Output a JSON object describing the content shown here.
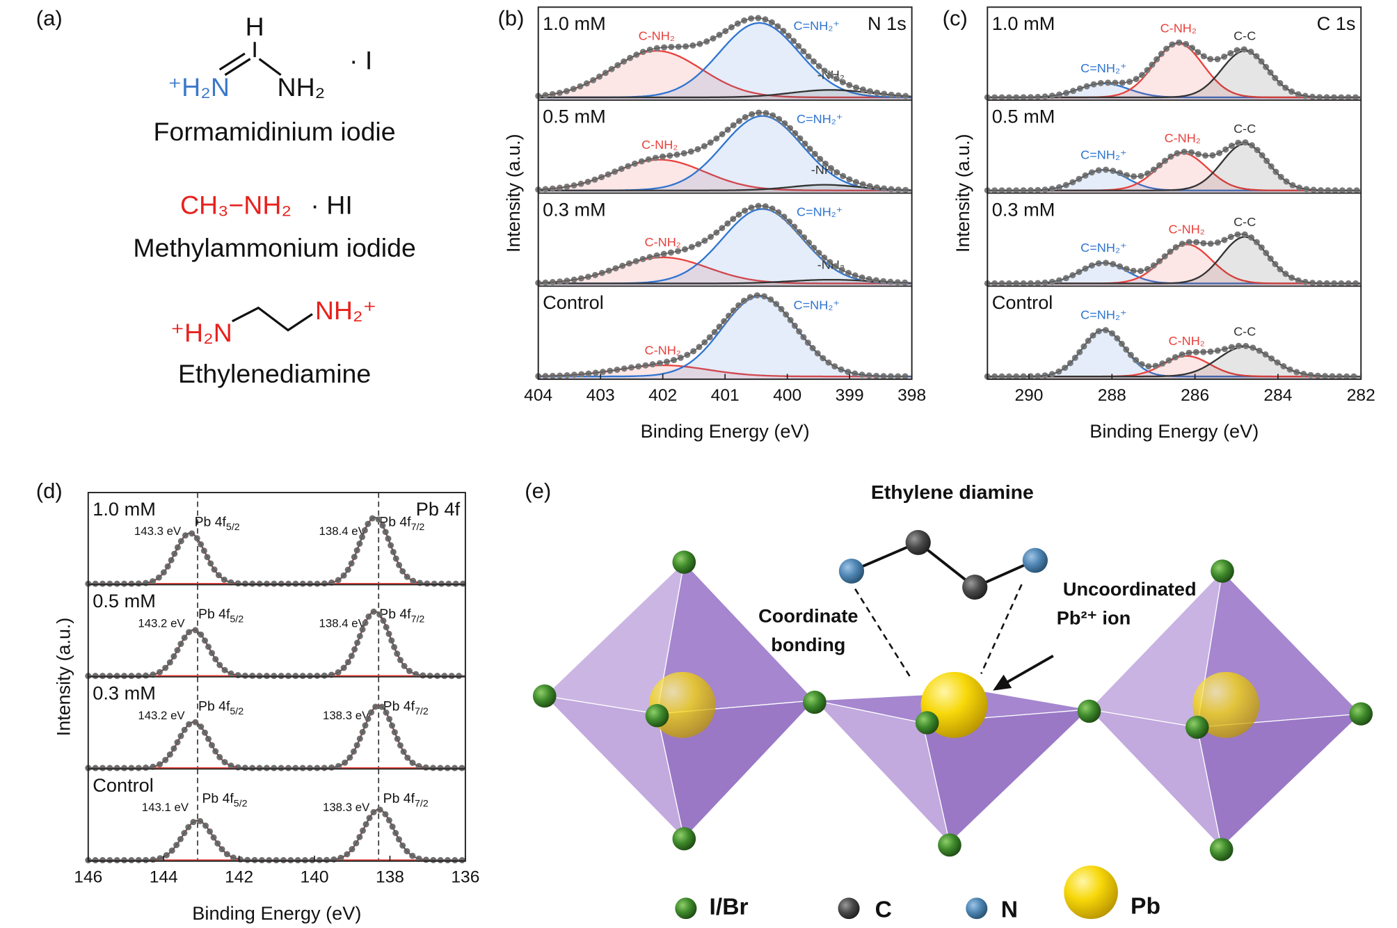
{
  "panel_a": {
    "label": "(a)",
    "fa_h": "H",
    "fa_n1": "⁺H₂N",
    "fa_n2": "NH₂",
    "fa_salt": "· I",
    "fa_name": "Formamidinium iodie",
    "ma_formula": "CH₃−NH₂",
    "ma_salt": "· HI",
    "ma_name": "Methylammonium iodide",
    "en_n1": "⁺H₂N",
    "en_n2": "NH₂⁺",
    "en_name": "Ethylenediamine"
  },
  "panel_e": {
    "label": "(e)",
    "title": "Ethylene diamine",
    "annotation_left": [
      "Coordinate",
      "bonding"
    ],
    "annotation_right": [
      "Uncoordinated",
      "Pb²⁺ ion"
    ],
    "legend": [
      "I/Br",
      "C",
      "N",
      "Pb"
    ]
  },
  "chart_data": [
    {
      "type": "xps",
      "panel_label": "(b)",
      "corner_label": "N 1s",
      "xlabel": "Binding Energy (eV)",
      "ylabel": "Intensity (a.u.)",
      "xlim": [
        404,
        398
      ],
      "xticks": [
        404,
        403,
        402,
        401,
        400,
        399,
        398
      ],
      "ylim": [
        0,
        1
      ],
      "baseline": 0.03,
      "fill_peaks": true,
      "envelope_color": "#7a7a7a",
      "subpanels": [
        {
          "label": "1.0 mM",
          "peaks": [
            {
              "name": "C-NH₂",
              "color": "#e8413c",
              "center": 402.1,
              "height": 0.5,
              "fwhm": 1.7
            },
            {
              "name": "C=NH₂⁺",
              "color": "#2f74d0",
              "center": 400.45,
              "height": 0.8,
              "fwhm": 1.5
            },
            {
              "name": "-NH₂",
              "color": "#333333",
              "center": 399.3,
              "height": 0.08,
              "fwhm": 1.5
            }
          ]
        },
        {
          "label": "0.5 mM",
          "peaks": [
            {
              "name": "C-NH₂",
              "color": "#e8413c",
              "center": 402.05,
              "height": 0.33,
              "fwhm": 1.7
            },
            {
              "name": "C=NH₂⁺",
              "color": "#2f74d0",
              "center": 400.4,
              "height": 0.8,
              "fwhm": 1.5
            },
            {
              "name": "-NH₂",
              "color": "#333333",
              "center": 399.4,
              "height": 0.06,
              "fwhm": 1.3
            }
          ]
        },
        {
          "label": "0.3 mM",
          "peaks": [
            {
              "name": "C-NH₂",
              "color": "#e8413c",
              "center": 402.0,
              "height": 0.28,
              "fwhm": 1.7
            },
            {
              "name": "C=NH₂⁺",
              "color": "#2f74d0",
              "center": 400.4,
              "height": 0.8,
              "fwhm": 1.5
            },
            {
              "name": "-NH₂",
              "color": "#333333",
              "center": 399.3,
              "height": 0.04,
              "fwhm": 1.5
            }
          ]
        },
        {
          "label": "Control",
          "peaks": [
            {
              "name": "C-NH₂",
              "color": "#e8413c",
              "center": 402.0,
              "height": 0.12,
              "fwhm": 1.7
            },
            {
              "name": "C=NH₂⁺",
              "color": "#2f74d0",
              "center": 400.45,
              "height": 0.86,
              "fwhm": 1.4
            }
          ]
        }
      ]
    },
    {
      "type": "xps",
      "panel_label": "(c)",
      "corner_label": "C 1s",
      "xlabel": "Binding Energy (eV)",
      "ylabel": "Intensity (a.u.)",
      "xlim": [
        291,
        282
      ],
      "xticks": [
        290,
        288,
        286,
        284,
        282
      ],
      "ylim": [
        0,
        1
      ],
      "baseline": 0.03,
      "fill_peaks": true,
      "envelope_color": "#7a7a7a",
      "subpanels": [
        {
          "label": "1.0 mM",
          "peaks": [
            {
              "name": "C=NH₂⁺",
              "color": "#2f74d0",
              "center": 288.2,
              "height": 0.15,
              "fwhm": 1.4
            },
            {
              "name": "C-NH₂",
              "color": "#e8413c",
              "center": 286.4,
              "height": 0.58,
              "fwhm": 1.4
            },
            {
              "name": "C-C",
              "color": "#333333",
              "center": 284.8,
              "height": 0.5,
              "fwhm": 1.3
            }
          ]
        },
        {
          "label": "0.5 mM",
          "peaks": [
            {
              "name": "C=NH₂⁺",
              "color": "#2f74d0",
              "center": 288.2,
              "height": 0.22,
              "fwhm": 1.3
            },
            {
              "name": "C-NH₂",
              "color": "#e8413c",
              "center": 286.3,
              "height": 0.4,
              "fwhm": 1.4
            },
            {
              "name": "C-C",
              "color": "#333333",
              "center": 284.8,
              "height": 0.5,
              "fwhm": 1.3
            }
          ]
        },
        {
          "label": "0.3 mM",
          "peaks": [
            {
              "name": "C=NH₂⁺",
              "color": "#2f74d0",
              "center": 288.2,
              "height": 0.22,
              "fwhm": 1.3
            },
            {
              "name": "C-NH₂",
              "color": "#e8413c",
              "center": 286.2,
              "height": 0.42,
              "fwhm": 1.4
            },
            {
              "name": "C-C",
              "color": "#333333",
              "center": 284.8,
              "height": 0.5,
              "fwhm": 1.3
            }
          ]
        },
        {
          "label": "Control",
          "peaks": [
            {
              "name": "C=NH₂⁺",
              "color": "#2f74d0",
              "center": 288.2,
              "height": 0.5,
              "fwhm": 1.2
            },
            {
              "name": "C-NH₂",
              "color": "#e8413c",
              "center": 286.2,
              "height": 0.22,
              "fwhm": 1.3
            },
            {
              "name": "C-C",
              "color": "#333333",
              "center": 284.8,
              "height": 0.32,
              "fwhm": 1.5
            }
          ]
        }
      ]
    },
    {
      "type": "xps",
      "panel_label": "(d)",
      "corner_label": "Pb 4f",
      "xlabel": "Binding Energy (eV)",
      "ylabel": "Intensity (a.u.)",
      "xlim": [
        146,
        136
      ],
      "xticks": [
        146,
        144,
        142,
        140,
        138,
        136
      ],
      "ylim": [
        0,
        1
      ],
      "baseline": 0.01,
      "fill_peaks": false,
      "envelope_color": "#6f6f6f",
      "reference_lines": [
        143.1,
        138.3
      ],
      "subpanels": [
        {
          "label": "1.0 mM",
          "peaks": [
            {
              "name": "Pb 4f",
              "sub": "5/2",
              "color": "#e8413c",
              "center": 143.3,
              "value_label": "143.3 eV",
              "height": 0.55,
              "fwhm": 0.95
            },
            {
              "name": "Pb 4f",
              "sub": "7/2",
              "color": "#e8413c",
              "center": 138.4,
              "value_label": "138.4 eV",
              "height": 0.72,
              "fwhm": 0.95
            }
          ]
        },
        {
          "label": "0.5 mM",
          "peaks": [
            {
              "name": "Pb 4f",
              "sub": "5/2",
              "color": "#e8413c",
              "center": 143.2,
              "value_label": "143.2 eV",
              "height": 0.5,
              "fwhm": 0.95
            },
            {
              "name": "Pb 4f",
              "sub": "7/2",
              "color": "#e8413c",
              "center": 138.4,
              "value_label": "138.4 eV",
              "height": 0.7,
              "fwhm": 0.95
            }
          ]
        },
        {
          "label": "0.3 mM",
          "peaks": [
            {
              "name": "Pb 4f",
              "sub": "5/2",
              "color": "#e8413c",
              "center": 143.2,
              "value_label": "143.2 eV",
              "height": 0.5,
              "fwhm": 0.95
            },
            {
              "name": "Pb 4f",
              "sub": "7/2",
              "color": "#e8413c",
              "center": 138.3,
              "value_label": "138.3 eV",
              "height": 0.68,
              "fwhm": 0.95
            }
          ]
        },
        {
          "label": "Control",
          "peaks": [
            {
              "name": "Pb 4f",
              "sub": "5/2",
              "color": "#e8413c",
              "center": 143.1,
              "value_label": "143.1 eV",
              "height": 0.43,
              "fwhm": 0.95
            },
            {
              "name": "Pb 4f",
              "sub": "7/2",
              "color": "#e8413c",
              "center": 138.3,
              "value_label": "138.3 eV",
              "height": 0.55,
              "fwhm": 0.95
            }
          ]
        }
      ]
    }
  ]
}
